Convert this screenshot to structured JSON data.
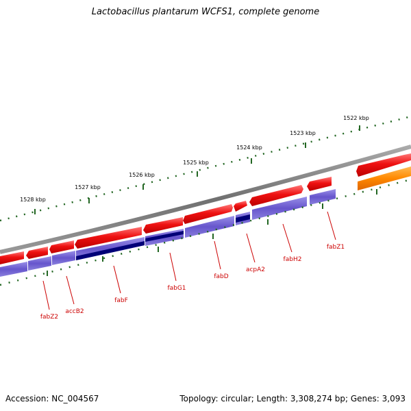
{
  "title": "Lactobacillus plantarum WCFS1, complete genome",
  "footer": {
    "accession": "Accession: NC_004567",
    "summary": "Topology: circular; Length: 3,308,274 bp; Genes: 3,093"
  },
  "ruler": {
    "tick_labels": [
      "1528 kbp",
      "1527 kbp",
      "1526 kbp",
      "1525 kbp",
      "1524 kbp",
      "1523 kbp",
      "1522 kbp"
    ]
  },
  "gene_labels": [
    "fabZ2",
    "accB2",
    "fabF",
    "fabG1",
    "fabD",
    "acpA2",
    "fabH2",
    "fabZ1"
  ],
  "colors": {
    "cds_red": "#ee1111",
    "protein_blue": "#6655cc",
    "protein_dark": "#000077",
    "orange": "#ff8800",
    "backbone": "#808080",
    "tick_green": "#226622",
    "label_red": "#cc0000"
  }
}
